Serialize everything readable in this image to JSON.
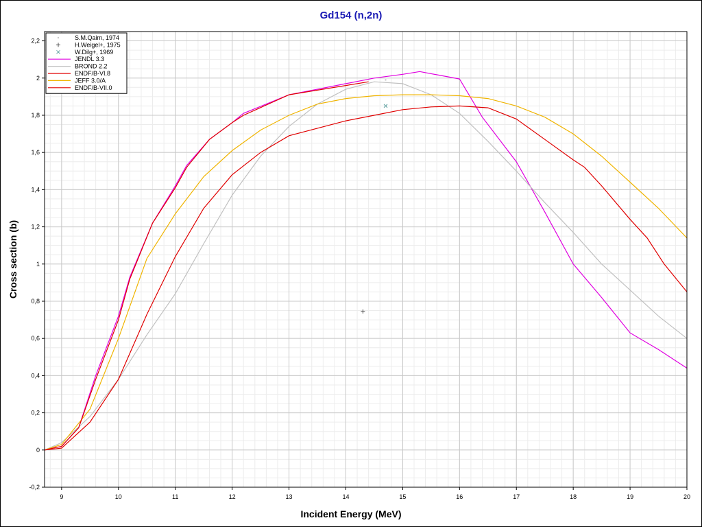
{
  "chart_data": {
    "type": "line",
    "title": "Gd154 (n,2n)",
    "xlabel": "Incident Energy (MeV)",
    "ylabel": "Cross section (b)",
    "xlim": [
      8.7,
      20
    ],
    "ylim": [
      -0.2,
      2.25
    ],
    "xticks": [
      9,
      10,
      11,
      12,
      13,
      14,
      15,
      16,
      17,
      18,
      19,
      20
    ],
    "yticks": [
      -0.2,
      0,
      0.2,
      0.4,
      0.6,
      0.8,
      1,
      1.2,
      1.4,
      1.6,
      1.8,
      2,
      2.2
    ],
    "ytick_labels": [
      "-0,2",
      "0",
      "0,2",
      "0,4",
      "0,6",
      "0,8",
      "1",
      "1,2",
      "1,4",
      "1,6",
      "1,8",
      "2",
      "2,2"
    ],
    "grid": true,
    "legend_position": "top-left",
    "experimental": [
      {
        "name": "S.M.Qaim, 1974",
        "marker": "dot",
        "color": "#c8c8c8",
        "points": [
          [
            14.7,
            1.99
          ]
        ]
      },
      {
        "name": "H.Weigel+, 1975",
        "marker": "plus",
        "color": "#505050",
        "points": [
          [
            14.3,
            0.745
          ]
        ]
      },
      {
        "name": "W.Dilg+, 1969",
        "marker": "cross",
        "color": "#5fa0a0",
        "points": [
          [
            14.7,
            1.85
          ]
        ]
      }
    ],
    "series": [
      {
        "name": "JENDL 3.3",
        "color": "#e000e0",
        "x": [
          8.7,
          9.0,
          9.3,
          9.6,
          10.0,
          10.2,
          10.6,
          11.0,
          11.2,
          11.6,
          12.0,
          12.2,
          13.0,
          14.0,
          14.5,
          15.0,
          15.3,
          16.0,
          16.4,
          17.0,
          17.5,
          18.0,
          18.5,
          19.0,
          19.5,
          20.0
        ],
        "y": [
          0.0,
          0.02,
          0.12,
          0.4,
          0.72,
          0.93,
          1.22,
          1.42,
          1.53,
          1.67,
          1.76,
          1.81,
          1.91,
          1.97,
          2.0,
          2.02,
          2.035,
          1.995,
          1.79,
          1.55,
          1.28,
          1.0,
          0.82,
          0.63,
          0.54,
          0.44
        ]
      },
      {
        "name": "BROND 2.2",
        "color": "#c0c0c0",
        "x": [
          8.7,
          9.0,
          9.5,
          10.0,
          10.5,
          11.0,
          11.5,
          12.0,
          12.5,
          13.0,
          13.5,
          14.0,
          14.5,
          15.0,
          15.5,
          16.0,
          16.5,
          17.0,
          17.5,
          18.0,
          18.5,
          19.0,
          19.5,
          20.0
        ],
        "y": [
          0.0,
          0.04,
          0.18,
          0.38,
          0.62,
          0.84,
          1.11,
          1.37,
          1.58,
          1.74,
          1.86,
          1.94,
          1.98,
          1.97,
          1.91,
          1.81,
          1.66,
          1.5,
          1.33,
          1.17,
          1.0,
          0.86,
          0.72,
          0.6
        ]
      },
      {
        "name": "ENDF/B-VI.8",
        "color": "#e00000",
        "x": [
          8.7,
          9.0,
          9.5,
          10.0,
          10.5,
          11.0,
          11.5,
          12.0,
          12.5,
          13.0,
          13.5,
          14.0,
          14.5,
          15.0,
          15.5,
          16.0,
          16.5,
          17.0,
          17.5,
          18.0,
          18.2,
          18.5,
          19.0,
          19.3,
          19.6,
          20.0
        ],
        "y": [
          0.0,
          0.01,
          0.15,
          0.38,
          0.73,
          1.04,
          1.3,
          1.48,
          1.6,
          1.69,
          1.73,
          1.77,
          1.8,
          1.83,
          1.845,
          1.85,
          1.84,
          1.78,
          1.67,
          1.56,
          1.52,
          1.42,
          1.24,
          1.14,
          1.0,
          0.85
        ]
      },
      {
        "name": "JEFF 3.0/A",
        "color": "#f0b400",
        "x": [
          8.7,
          9.0,
          9.5,
          10.0,
          10.5,
          11.0,
          11.5,
          12.0,
          12.5,
          13.0,
          13.5,
          14.0,
          14.5,
          15.0,
          15.5,
          16.0,
          16.5,
          17.0,
          17.5,
          18.0,
          18.5,
          19.0,
          19.5,
          20.0
        ],
        "y": [
          0.0,
          0.03,
          0.22,
          0.6,
          1.03,
          1.27,
          1.47,
          1.61,
          1.72,
          1.8,
          1.86,
          1.89,
          1.905,
          1.91,
          1.91,
          1.905,
          1.89,
          1.85,
          1.79,
          1.7,
          1.58,
          1.44,
          1.3,
          1.14
        ]
      },
      {
        "name": "ENDF/B-VII.0",
        "color": "#e00000",
        "x": [
          8.7,
          9.0,
          9.3,
          9.6,
          10.0,
          10.2,
          10.6,
          11.0,
          11.2,
          11.6,
          12.0,
          12.2,
          13.0,
          14.0,
          14.4
        ],
        "y": [
          0.0,
          0.02,
          0.12,
          0.38,
          0.7,
          0.92,
          1.22,
          1.41,
          1.52,
          1.67,
          1.76,
          1.8,
          1.91,
          1.96,
          1.98
        ]
      }
    ]
  }
}
